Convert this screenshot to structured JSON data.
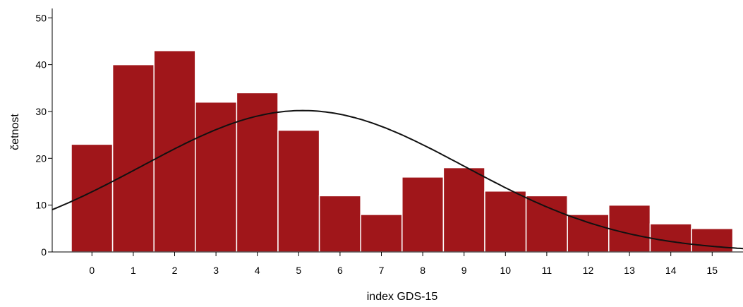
{
  "chart_data": {
    "type": "bar",
    "title": "",
    "xlabel": "index GDS-15",
    "ylabel": "četnost",
    "categories": [
      "0",
      "1",
      "2",
      "3",
      "4",
      "5",
      "6",
      "7",
      "8",
      "9",
      "10",
      "11",
      "12",
      "13",
      "14",
      "15"
    ],
    "values": [
      23,
      40,
      43,
      32,
      34,
      26,
      12,
      8,
      16,
      18,
      13,
      12,
      8,
      10,
      6,
      5
    ],
    "yticks": [
      "0",
      "10",
      "20",
      "30",
      "40",
      "50"
    ],
    "ylim": [
      0,
      52
    ],
    "grid": false,
    "legend": "none",
    "overlay": {
      "type": "normal-curve",
      "mean": 5.1,
      "peak": 30.2,
      "sd": 3.9
    },
    "colors": {
      "bar": "#a0161a",
      "bar_edge": "#ffffff",
      "curve": "#111111"
    }
  }
}
